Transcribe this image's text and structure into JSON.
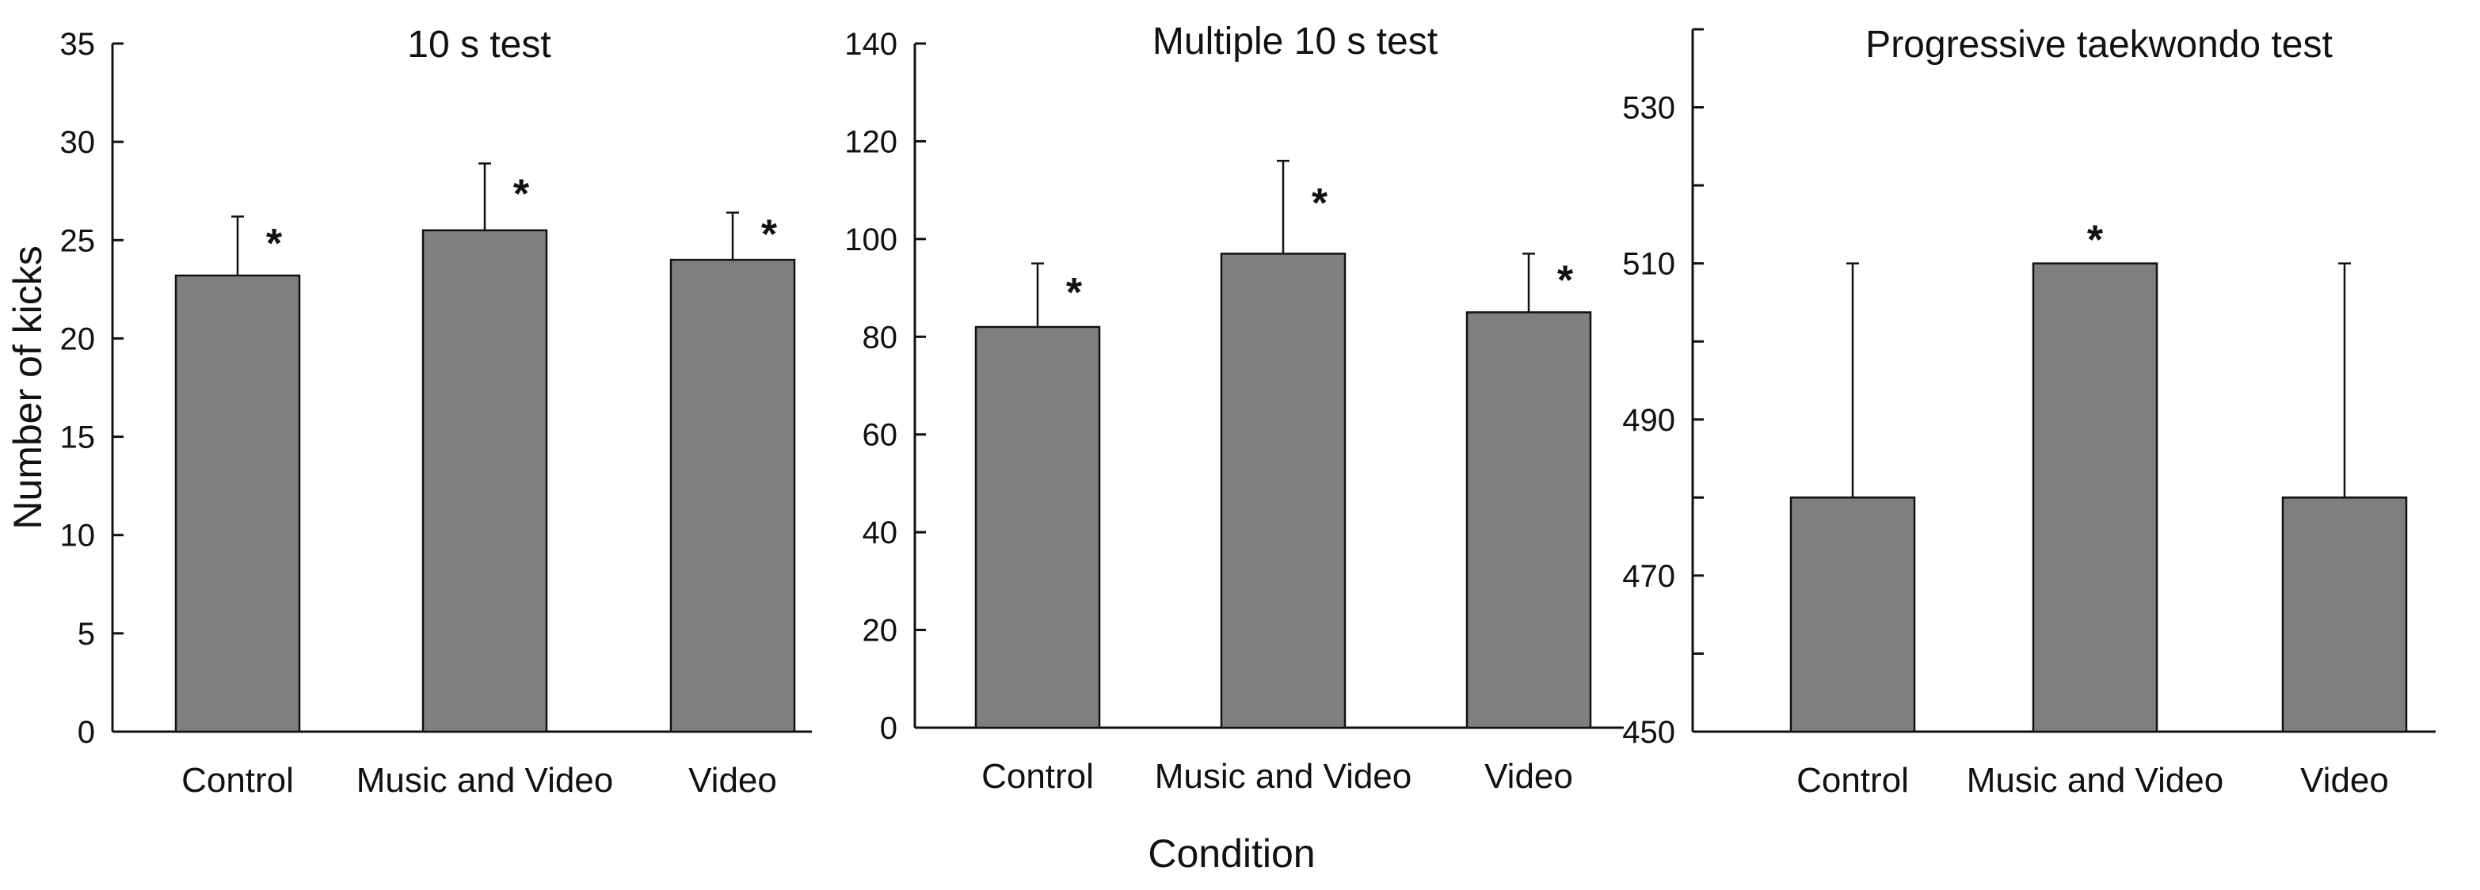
{
  "chart_data": [
    {
      "type": "bar",
      "title": "10 s test",
      "ylabel": "Number of kicks",
      "categories": [
        "Control",
        "Music and Video",
        "Video"
      ],
      "values": [
        23.2,
        25.5,
        24.0
      ],
      "error": [
        3.0,
        3.4,
        2.4
      ],
      "significance": [
        "*",
        "*",
        "*"
      ],
      "ylim": [
        0,
        35
      ],
      "yticks": [
        0,
        5,
        10,
        15,
        20,
        25,
        30,
        35
      ],
      "ytick_labels": [
        "0",
        "5",
        "10",
        "15",
        "20",
        "25",
        "30",
        "35"
      ]
    },
    {
      "type": "bar",
      "title": "Multiple 10 s test",
      "categories": [
        "Control",
        "Music and Video",
        "Video"
      ],
      "values": [
        82,
        97,
        85
      ],
      "error": [
        13,
        19,
        12
      ],
      "significance": [
        "*",
        "*",
        "*"
      ],
      "ylim": [
        0,
        140
      ],
      "yticks": [
        0,
        20,
        40,
        60,
        80,
        100,
        120,
        140
      ],
      "ytick_labels": [
        "0",
        "20",
        "40",
        "60",
        "80",
        "100",
        "120",
        "140"
      ]
    },
    {
      "type": "bar",
      "title": "Progressive taekwondo test",
      "categories": [
        "Control",
        "Music and Video",
        "Video"
      ],
      "values": [
        480,
        510,
        480
      ],
      "error": [
        30,
        0,
        30
      ],
      "significance": [
        "",
        "*",
        ""
      ],
      "ylim": [
        450,
        540
      ],
      "yticks": [
        450,
        460,
        470,
        480,
        490,
        500,
        510,
        520,
        530,
        540
      ],
      "ytick_labels": [
        "450",
        "",
        "470",
        "",
        "490",
        "",
        "510",
        "",
        "530",
        ""
      ]
    }
  ],
  "xlabel": "Condition",
  "colors": {
    "bar_fill": "#7f7f7f",
    "stroke": "#111111"
  }
}
